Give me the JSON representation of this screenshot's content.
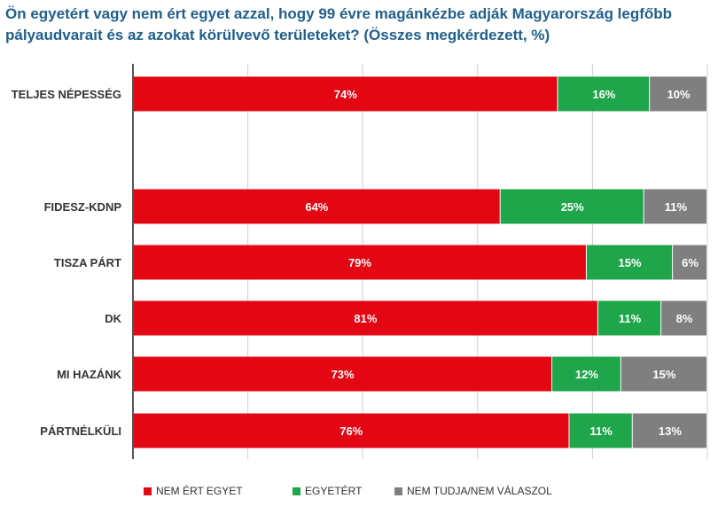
{
  "chart_data": {
    "type": "bar",
    "orientation": "horizontal",
    "stacked": true,
    "title": "Ön egyetért vagy nem ért egyet azzal, hogy 99 évre magánkézbe adják Magyarország legfőbb pályaudvarait és az azokat körülvevő területeket? (Összes megkérdezett, %)",
    "xlim": [
      0,
      100
    ],
    "grid": true,
    "legend": "bottom",
    "categories": [
      "TELJES NÉPESSÉG",
      "FIDESZ-KDNP",
      "TISZA PÁRT",
      "DK",
      "MI HAZÁNK",
      "PÁRTNÉLKÜLI"
    ],
    "series": [
      {
        "name": "NEM ÉRT EGYET",
        "color": "#e30613",
        "values": [
          74,
          64,
          79,
          81,
          73,
          76
        ],
        "labels": [
          "74%",
          "64%",
          "79%",
          "81%",
          "73%",
          "76%"
        ]
      },
      {
        "name": "EGYETÉRT",
        "color": "#1fa54a",
        "values": [
          16,
          25,
          15,
          11,
          12,
          11
        ],
        "labels": [
          "16%",
          "25%",
          "15%",
          "11%",
          "12%",
          "11%"
        ]
      },
      {
        "name": "NEM TUDJA/NEM VÁLASZOL",
        "color": "#7f7f7f",
        "values": [
          10,
          11,
          6,
          8,
          15,
          13
        ],
        "labels": [
          "10%",
          "11%",
          "6%",
          "8%",
          "15%",
          "13%"
        ]
      }
    ]
  }
}
